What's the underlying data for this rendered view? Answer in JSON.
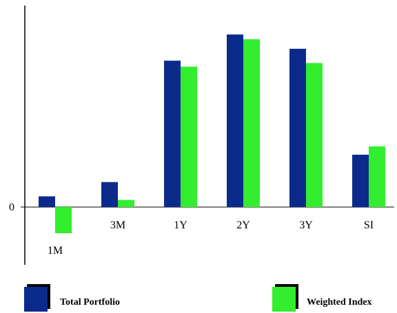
{
  "chart_data": {
    "type": "bar",
    "title": "",
    "xlabel": "",
    "ylabel": "",
    "categories": [
      "1M",
      "3M",
      "1Y",
      "2Y",
      "3Y",
      "SI"
    ],
    "series": [
      {
        "name": "Total Portfolio",
        "color": "#0a2a8c",
        "values": [
          0.9,
          2.1,
          12.3,
          14.5,
          13.3,
          4.4
        ]
      },
      {
        "name": "Weighted Index",
        "color": "#33ee2e",
        "values": [
          -2.2,
          0.6,
          11.8,
          14.1,
          12.1,
          5.1
        ]
      }
    ],
    "y_tick_labels": [
      "0"
    ],
    "ylim": [
      -4.7,
      17.0
    ],
    "grid": false,
    "legend_position": "bottom"
  }
}
